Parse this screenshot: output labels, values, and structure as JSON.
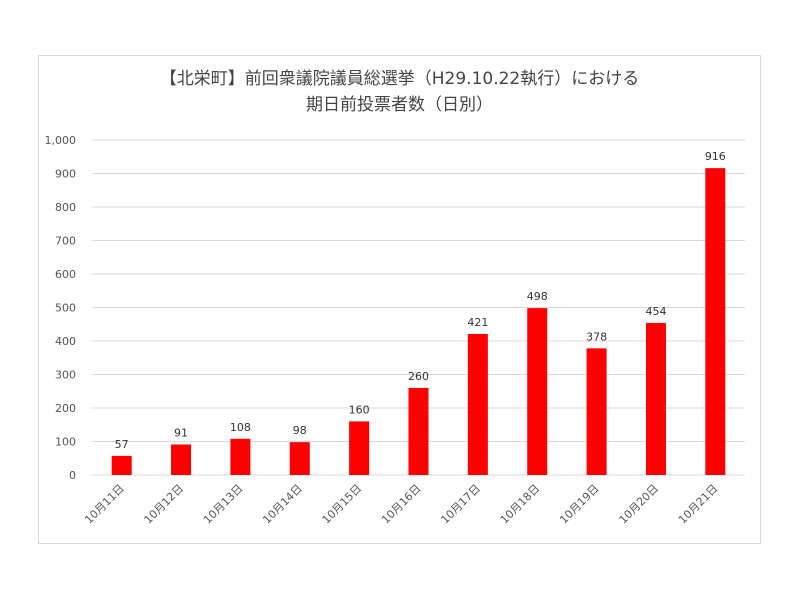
{
  "chart_data": {
    "type": "bar",
    "title_lines": [
      "【北栄町】前回衆議院議員総選挙（H29.10.22執行）における",
      "期日前投票者数（日別）"
    ],
    "categories": [
      "10月11日",
      "10月12日",
      "10月13日",
      "10月14日",
      "10月15日",
      "10月16日",
      "10月17日",
      "10月18日",
      "10月19日",
      "10月20日",
      "10月21日"
    ],
    "values": [
      57,
      91,
      108,
      98,
      160,
      260,
      421,
      498,
      378,
      454,
      916
    ],
    "value_labels": [
      "57",
      "91",
      "108",
      "98",
      "160",
      "260",
      "421",
      "498",
      "378",
      "454",
      "916"
    ],
    "ylim": [
      0,
      1000
    ],
    "yticks": [
      0,
      100,
      200,
      300,
      400,
      500,
      600,
      700,
      800,
      900,
      1000
    ],
    "ytick_labels": [
      "0",
      "100",
      "200",
      "300",
      "400",
      "500",
      "600",
      "700",
      "800",
      "900",
      "1,000"
    ],
    "grid": true,
    "legend": false,
    "bar_color": "#ff0000",
    "grid_color": "#d9d9d9"
  }
}
